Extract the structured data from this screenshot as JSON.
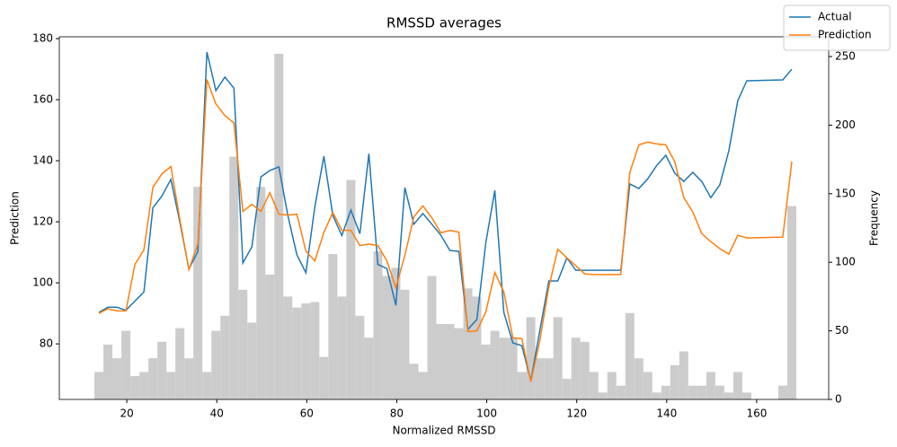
{
  "chart_data": {
    "type": "line",
    "title": "RMSSD averages",
    "xlabel": "Normalized RMSSD",
    "ylabel": "Prediction",
    "y2label": "Frequency",
    "x": [
      13.8,
      15.8,
      17.8,
      19.8,
      21.8,
      23.8,
      25.8,
      27.8,
      29.8,
      31.8,
      33.8,
      35.8,
      37.8,
      39.8,
      41.8,
      43.8,
      45.8,
      47.8,
      49.8,
      51.8,
      53.8,
      55.8,
      57.8,
      59.8,
      61.8,
      63.8,
      65.8,
      67.8,
      69.8,
      71.8,
      73.8,
      75.8,
      77.8,
      79.8,
      81.8,
      83.8,
      85.8,
      87.8,
      89.8,
      91.8,
      93.8,
      95.8,
      97.8,
      99.8,
      101.8,
      103.8,
      105.8,
      107.8,
      109.8,
      111.8,
      113.8,
      115.8,
      117.8,
      119.8,
      121.8,
      123.8,
      125.8,
      127.8,
      129.8,
      131.8,
      133.8,
      135.8,
      137.8,
      139.8,
      141.8,
      143.8,
      145.8,
      147.8,
      149.8,
      151.8,
      153.8,
      155.8,
      157.8,
      165.8,
      167.8
    ],
    "series": [
      {
        "name": "Actual",
        "color": "#1f77b4",
        "values": [
          90.3,
          92,
          92,
          91,
          94,
          97,
          124.6,
          128.4,
          133.9,
          119.8,
          104.5,
          110.3,
          175.6,
          163,
          167.4,
          163.8,
          106.5,
          111.8,
          134.7,
          136.8,
          138,
          122,
          109.2,
          103.3,
          125,
          141.5,
          122,
          115.5,
          123.8,
          116.1,
          142.3,
          106,
          104.7,
          92.6,
          131.2,
          119.2,
          122.7,
          119.2,
          115.6,
          110.6,
          110.3,
          84.7,
          88,
          113.2,
          130.3,
          90.3,
          80.3,
          79.4,
          67.9,
          84.4,
          100.6,
          100.6,
          108.2,
          104.1,
          104.1,
          104.1,
          104.1,
          104.1,
          104.1,
          132.4,
          130.9,
          134.1,
          138.5,
          141.8,
          135.9,
          133.2,
          136.2,
          133.2,
          127.9,
          132.1,
          143.2,
          159.7,
          166.2,
          166.5,
          170
        ]
      },
      {
        "name": "Prediction",
        "color": "#ff7f0e",
        "values": [
          90,
          91.5,
          90.8,
          90.8,
          106,
          110.8,
          131.3,
          135.7,
          138.1,
          120.7,
          104.3,
          112.7,
          166.6,
          158.6,
          154.8,
          152.4,
          123.4,
          125.7,
          123.4,
          129.5,
          122.5,
          122.2,
          122.5,
          110.4,
          107.2,
          116.6,
          123,
          117.2,
          117.2,
          112.2,
          112.7,
          112.2,
          107.2,
          98.4,
          109,
          121.6,
          125.2,
          121.3,
          116.4,
          117.2,
          116.6,
          84,
          84.3,
          90.5,
          103.4,
          97,
          82,
          81.7,
          67.6,
          81.1,
          98.7,
          111,
          108.2,
          105.6,
          102.9,
          102.7,
          102.7,
          102.7,
          102.7,
          136.1,
          145.2,
          146.1,
          145.5,
          145.2,
          139.6,
          127.9,
          123.2,
          116.1,
          113.5,
          111.2,
          109.4,
          115.6,
          114.7,
          115,
          139.7
        ]
      }
    ],
    "histogram": {
      "type": "histogram",
      "axis": "y2",
      "color": "#cccccc",
      "bins": [
        12.8,
        14.8,
        16.8,
        18.8,
        20.8,
        22.8,
        24.8,
        26.8,
        28.8,
        30.8,
        32.8,
        34.8,
        36.8,
        38.8,
        40.8,
        42.8,
        44.8,
        46.8,
        48.8,
        50.8,
        52.8,
        54.8,
        56.8,
        58.8,
        60.8,
        62.8,
        64.8,
        66.8,
        68.8,
        70.8,
        72.8,
        74.8,
        76.8,
        78.8,
        80.8,
        82.8,
        84.8,
        86.8,
        88.8,
        90.8,
        92.8,
        94.8,
        96.8,
        98.8,
        100.8,
        102.8,
        104.8,
        106.8,
        108.8,
        110.8,
        112.8,
        114.8,
        116.8,
        118.8,
        120.8,
        122.8,
        124.8,
        126.8,
        128.8,
        130.8,
        132.8,
        134.8,
        136.8,
        138.8,
        140.8,
        142.8,
        144.8,
        146.8,
        148.8,
        150.8,
        152.8,
        154.8,
        156.8,
        158.8,
        160.8,
        162.8,
        164.8,
        166.8,
        168.8
      ],
      "counts": [
        20,
        40,
        30,
        50,
        17,
        20,
        30,
        42,
        20,
        52,
        30,
        155,
        20,
        50,
        61,
        177,
        80,
        56,
        155,
        91,
        252,
        75,
        67,
        70,
        71,
        31,
        106,
        75,
        160,
        61,
        45,
        108,
        90,
        96,
        80,
        26,
        20,
        90,
        55,
        55,
        52,
        81,
        75,
        40,
        50,
        45,
        45,
        20,
        60,
        30,
        30,
        60,
        15,
        45,
        42,
        20,
        5,
        20,
        10,
        63,
        30,
        20,
        5,
        10,
        25,
        35,
        10,
        10,
        20,
        10,
        5,
        20,
        5,
        0,
        0,
        0,
        10,
        141
      ]
    },
    "xlim": [
      5,
      176
    ],
    "ylim": [
      61.8,
      180.6
    ],
    "y2lim": [
      0,
      264.4
    ],
    "xticks": [
      20,
      40,
      60,
      80,
      100,
      120,
      140,
      160
    ],
    "yticks": [
      80,
      100,
      120,
      140,
      160,
      180
    ],
    "y2ticks": [
      0,
      50,
      100,
      150,
      200,
      250
    ],
    "legend": "upper right"
  }
}
